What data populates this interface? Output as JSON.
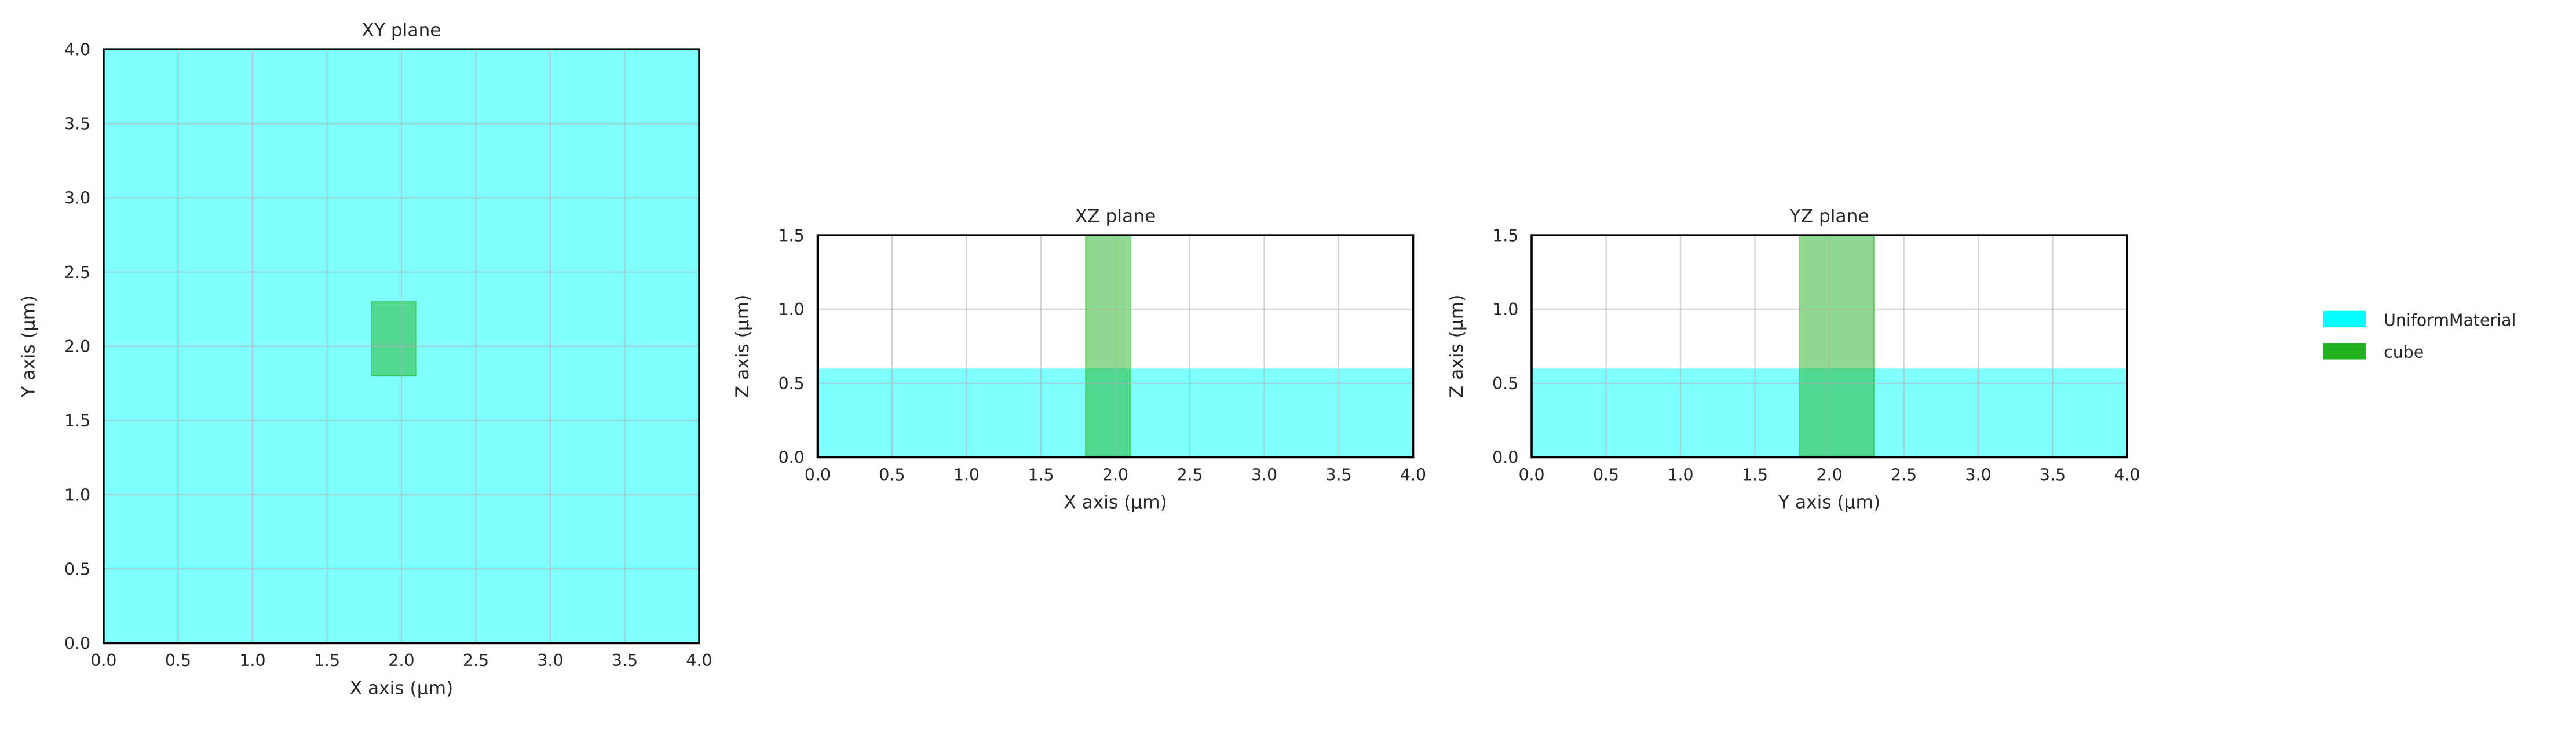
{
  "chart_data": [
    {
      "type": "area",
      "title": "XY plane",
      "xlabel": "X axis (μm)",
      "ylabel": "Y axis (μm)",
      "xlim": [
        0.0,
        4.0
      ],
      "ylim": [
        0.0,
        4.0
      ],
      "xticks": [
        "0.0",
        "0.5",
        "1.0",
        "1.5",
        "2.0",
        "2.5",
        "3.0",
        "3.5",
        "4.0"
      ],
      "yticks": [
        "0.0",
        "0.5",
        "1.0",
        "1.5",
        "2.0",
        "2.5",
        "3.0",
        "3.5",
        "4.0"
      ],
      "grid": true,
      "regions": [
        {
          "name": "UniformMaterial",
          "x": [
            0.0,
            4.0
          ],
          "y": [
            0.0,
            4.0
          ]
        },
        {
          "name": "cube",
          "x": [
            1.8,
            2.1
          ],
          "y": [
            1.8,
            2.3
          ]
        }
      ]
    },
    {
      "type": "area",
      "title": "XZ plane",
      "xlabel": "X axis (μm)",
      "ylabel": "Z axis (μm)",
      "xlim": [
        0.0,
        4.0
      ],
      "ylim": [
        0.0,
        1.5
      ],
      "xticks": [
        "0.0",
        "0.5",
        "1.0",
        "1.5",
        "2.0",
        "2.5",
        "3.0",
        "3.5",
        "4.0"
      ],
      "yticks": [
        "0.0",
        "0.5",
        "1.0",
        "1.5"
      ],
      "grid": true,
      "regions": [
        {
          "name": "UniformMaterial",
          "x": [
            0.0,
            4.0
          ],
          "y": [
            0.0,
            0.6
          ]
        },
        {
          "name": "cube",
          "x": [
            1.8,
            2.1
          ],
          "y": [
            0.0,
            1.5
          ]
        }
      ]
    },
    {
      "type": "area",
      "title": "YZ plane",
      "xlabel": "Y axis (μm)",
      "ylabel": "Z axis (μm)",
      "xlim": [
        0.0,
        4.0
      ],
      "ylim": [
        0.0,
        1.5
      ],
      "xticks": [
        "0.0",
        "0.5",
        "1.0",
        "1.5",
        "2.0",
        "2.5",
        "3.0",
        "3.5",
        "4.0"
      ],
      "yticks": [
        "0.0",
        "0.5",
        "1.0",
        "1.5"
      ],
      "grid": true,
      "regions": [
        {
          "name": "UniformMaterial",
          "x": [
            0.0,
            4.0
          ],
          "y": [
            0.0,
            0.6
          ]
        },
        {
          "name": "cube",
          "x": [
            1.8,
            2.3
          ],
          "y": [
            0.0,
            1.5
          ]
        }
      ]
    }
  ],
  "legend": {
    "placement": "right",
    "items": [
      {
        "label": "UniformMaterial",
        "color": "#00ffff"
      },
      {
        "label": "cube",
        "color": "#22b222"
      }
    ]
  },
  "colors": {
    "UniformMaterial": "#00ffff",
    "cube": "#22b222",
    "grid": "#b0b0b0",
    "axes": "#000000"
  }
}
